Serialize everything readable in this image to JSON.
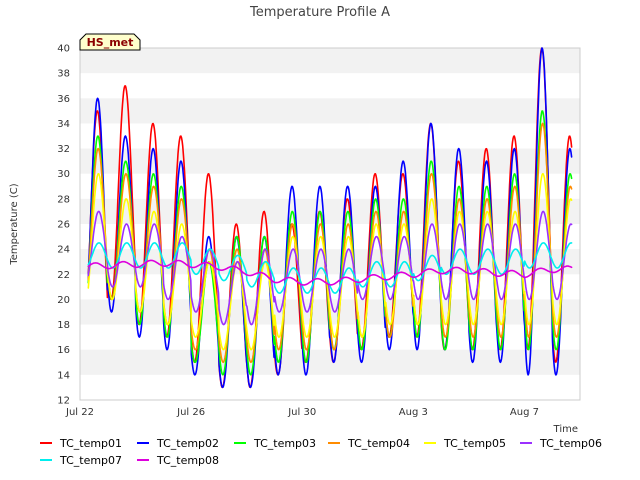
{
  "chart_data": {
    "type": "line",
    "title": "Temperature Profile A",
    "ylabel": "Temperature (C)",
    "xlabel": "Time",
    "badge": "HS_met",
    "ylim": [
      12,
      40
    ],
    "yticks": [
      12,
      14,
      16,
      18,
      20,
      22,
      24,
      26,
      28,
      30,
      32,
      34,
      36,
      38,
      40
    ],
    "xlim": [
      "2023-07-22",
      "2023-08-09"
    ],
    "xticks": [
      {
        "date": "2023-07-22",
        "label": "Jul 22"
      },
      {
        "date": "2023-07-26",
        "label": "Jul 26"
      },
      {
        "date": "2023-07-30",
        "label": "Jul 30"
      },
      {
        "date": "2023-08-03",
        "label": "Aug 3"
      },
      {
        "date": "2023-08-07",
        "label": "Aug 7"
      }
    ],
    "grid": "horizontal bands",
    "legend_position": "bottom",
    "dates": [
      "2023-07-22",
      "2023-07-23",
      "2023-07-24",
      "2023-07-25",
      "2023-07-26",
      "2023-07-27",
      "2023-07-28",
      "2023-07-29",
      "2023-07-30",
      "2023-07-31",
      "2023-08-01",
      "2023-08-02",
      "2023-08-03",
      "2023-08-04",
      "2023-08-05",
      "2023-08-06",
      "2023-08-07",
      "2023-08-08"
    ],
    "series": [
      {
        "name": "TC_temp01",
        "color": "#ff0000",
        "daily_max": [
          35,
          37,
          34,
          33,
          30,
          26,
          27,
          26,
          27,
          28,
          30,
          30,
          34,
          31,
          32,
          33,
          40,
          33
        ],
        "daily_min": [
          17,
          20,
          18,
          17,
          15,
          13,
          13,
          14,
          15,
          15,
          16,
          17,
          17,
          16,
          16,
          16,
          16,
          15
        ]
      },
      {
        "name": "TC_temp02",
        "color": "#0000ff",
        "daily_max": [
          36,
          33,
          32,
          31,
          25,
          25,
          25,
          29,
          29,
          29,
          29,
          31,
          34,
          32,
          31,
          32,
          40,
          32
        ],
        "daily_min": [
          17,
          19,
          17,
          16,
          14,
          13,
          13,
          14,
          14,
          15,
          15,
          16,
          16,
          16,
          15,
          15,
          14,
          14
        ]
      },
      {
        "name": "TC_temp03",
        "color": "#00ff00",
        "daily_max": [
          33,
          31,
          30,
          29,
          23,
          25,
          25,
          27,
          27,
          27,
          28,
          28,
          31,
          29,
          29,
          30,
          35,
          30
        ],
        "daily_min": [
          18,
          20,
          18,
          17,
          15,
          14,
          14,
          15,
          15,
          16,
          16,
          17,
          17,
          16,
          16,
          16,
          16,
          16
        ]
      },
      {
        "name": "TC_temp04",
        "color": "#ff8c00",
        "daily_max": [
          32,
          30,
          29,
          28,
          24,
          24,
          24,
          26,
          26,
          26,
          27,
          27,
          30,
          28,
          28,
          29,
          34,
          29
        ],
        "daily_min": [
          19,
          20,
          19,
          18,
          16,
          15,
          15,
          16,
          16,
          16,
          17,
          17,
          18,
          17,
          17,
          17,
          17,
          17
        ]
      },
      {
        "name": "TC_temp05",
        "color": "#ffff00",
        "daily_max": [
          30,
          28,
          27,
          26,
          23,
          23,
          23,
          25,
          25,
          25,
          26,
          26,
          28,
          27,
          27,
          27,
          30,
          28
        ],
        "daily_min": [
          19,
          20,
          19,
          18,
          17,
          16,
          16,
          17,
          17,
          17,
          17,
          18,
          18,
          18,
          18,
          18,
          18,
          18
        ]
      },
      {
        "name": "TC_temp06",
        "color": "#9b30ff",
        "daily_max": [
          27,
          26,
          26,
          25,
          24,
          23,
          24,
          24,
          24,
          24,
          25,
          25,
          26,
          26,
          26,
          26,
          27,
          26
        ],
        "daily_min": [
          21,
          21,
          21,
          20,
          19,
          18,
          18,
          19,
          19,
          19,
          20,
          20,
          20,
          20,
          20,
          20,
          20,
          20
        ]
      },
      {
        "name": "TC_temp07",
        "color": "#00eeee",
        "daily_max": [
          24.5,
          24.5,
          24.5,
          24.5,
          24,
          23.5,
          23,
          22.5,
          22.5,
          22.5,
          23,
          23,
          23.5,
          24,
          24,
          24,
          24.5,
          24.5
        ],
        "daily_min": [
          22.5,
          22.5,
          22.5,
          22.5,
          22,
          21.5,
          21,
          20.5,
          20.5,
          20.5,
          21,
          21,
          21.5,
          22,
          22,
          22,
          22.5,
          22.5
        ]
      },
      {
        "name": "TC_temp08",
        "color": "#dd00dd",
        "daily_mean": [
          22.6,
          22.7,
          22.8,
          22.9,
          22.8,
          22.6,
          22.2,
          21.6,
          21.4,
          21.4,
          21.6,
          21.8,
          22.0,
          22.3,
          22.3,
          22.1,
          22.0,
          22.4
        ]
      }
    ]
  }
}
